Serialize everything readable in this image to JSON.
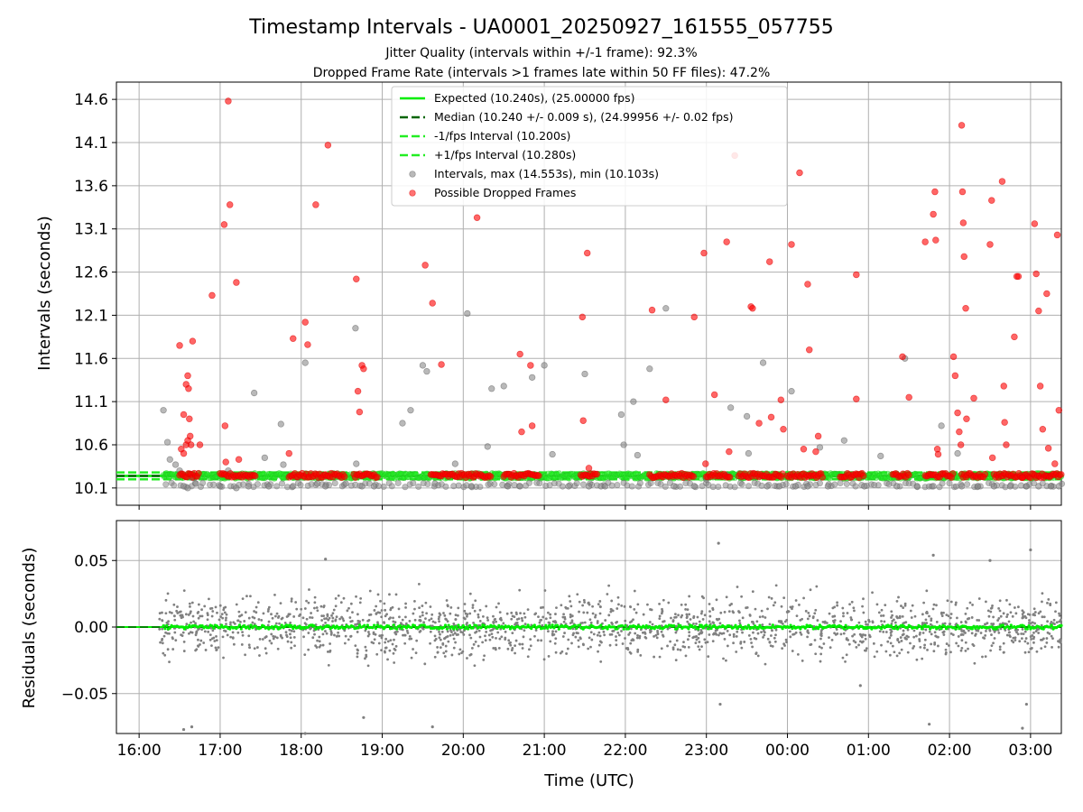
{
  "title": "Timestamp Intervals - UA0001_20250927_161555_057755",
  "subtitle_1": "Jitter Quality (intervals within +/-1 frame): 92.3%",
  "subtitle_2": "Dropped Frame Rate (intervals >1 frames late within 50 FF files): 47.2%",
  "colors": {
    "expected": "#00ee00",
    "median": "#006400",
    "fps_band": "#22ee22",
    "intervals": "#808080",
    "dropped": "#ff0000",
    "grid": "#b0b0b0"
  },
  "chart_data": [
    {
      "type": "scatter",
      "ylabel": "Intervals (seconds)",
      "xlabel": "",
      "x_range_hours": [
        15.72,
        27.38
      ],
      "ylim": [
        9.9,
        14.8
      ],
      "yticks": [
        10.1,
        10.6,
        11.1,
        11.6,
        12.1,
        12.6,
        13.1,
        13.6,
        14.1,
        14.6
      ],
      "grid": true,
      "legend_position": "top-center",
      "reference_lines": [
        {
          "name": "Expected (10.240s), (25.00000 fps)",
          "y": 10.24,
          "style": "solid",
          "color": "#00ee00"
        },
        {
          "name": "Median (10.240 +/- 0.009 s), (24.99956 +/- 0.02 fps)",
          "y": 10.24,
          "style": "dashed",
          "color": "#006400"
        },
        {
          "name": "-1/fps Interval (10.200s)",
          "y": 10.2,
          "style": "dashed",
          "color": "#22ee22"
        },
        {
          "name": "+1/fps Interval (10.280s)",
          "y": 10.28,
          "style": "dashed",
          "color": "#22ee22"
        }
      ],
      "series": [
        {
          "name": "Intervals, max (14.553s), min (10.103s)",
          "marker": "circle",
          "color": "#808080",
          "points": [
            [
              16.3,
              11.0
            ],
            [
              16.35,
              10.63
            ],
            [
              16.38,
              10.43
            ],
            [
              16.45,
              10.37
            ],
            [
              16.5,
              10.3
            ],
            [
              16.55,
              10.12
            ],
            [
              16.6,
              10.1
            ],
            [
              16.65,
              10.22
            ],
            [
              16.7,
              10.15
            ],
            [
              17.0,
              10.12
            ],
            [
              17.1,
              10.3
            ],
            [
              17.2,
              10.1
            ],
            [
              17.35,
              10.12
            ],
            [
              17.42,
              11.2
            ],
            [
              17.55,
              10.45
            ],
            [
              17.6,
              10.12
            ],
            [
              17.75,
              10.84
            ],
            [
              17.78,
              10.37
            ],
            [
              17.9,
              10.12
            ],
            [
              18.05,
              11.55
            ],
            [
              18.2,
              10.15
            ],
            [
              18.3,
              10.12
            ],
            [
              18.55,
              10.15
            ],
            [
              18.67,
              11.95
            ],
            [
              18.68,
              10.38
            ],
            [
              18.75,
              10.12
            ],
            [
              18.9,
              10.12
            ],
            [
              19.25,
              10.85
            ],
            [
              19.35,
              11.0
            ],
            [
              19.5,
              11.52
            ],
            [
              19.55,
              11.45
            ],
            [
              19.65,
              10.15
            ],
            [
              19.9,
              10.38
            ],
            [
              20.05,
              12.12
            ],
            [
              20.1,
              10.12
            ],
            [
              20.3,
              10.58
            ],
            [
              20.35,
              11.25
            ],
            [
              20.5,
              11.28
            ],
            [
              20.55,
              10.12
            ],
            [
              20.7,
              10.12
            ],
            [
              20.85,
              11.38
            ],
            [
              21.0,
              11.52
            ],
            [
              21.1,
              10.49
            ],
            [
              21.3,
              10.12
            ],
            [
              21.5,
              11.42
            ],
            [
              21.55,
              10.12
            ],
            [
              21.7,
              10.12
            ],
            [
              21.75,
              10.12
            ],
            [
              21.95,
              10.95
            ],
            [
              21.98,
              10.6
            ],
            [
              22.1,
              11.1
            ],
            [
              22.15,
              10.48
            ],
            [
              22.3,
              11.48
            ],
            [
              22.5,
              12.18
            ],
            [
              22.6,
              10.12
            ],
            [
              22.85,
              10.12
            ],
            [
              23.0,
              10.2
            ],
            [
              23.25,
              10.25
            ],
            [
              23.3,
              11.03
            ],
            [
              23.5,
              10.93
            ],
            [
              23.52,
              10.5
            ],
            [
              23.7,
              11.55
            ],
            [
              23.75,
              10.12
            ],
            [
              23.9,
              10.12
            ],
            [
              24.05,
              11.22
            ],
            [
              24.1,
              10.12
            ],
            [
              24.25,
              10.12
            ],
            [
              24.4,
              10.57
            ],
            [
              24.5,
              10.12
            ],
            [
              24.7,
              10.65
            ],
            [
              24.95,
              10.12
            ],
            [
              25.15,
              10.47
            ],
            [
              25.35,
              10.12
            ],
            [
              25.45,
              11.6
            ],
            [
              25.6,
              10.12
            ],
            [
              25.8,
              10.12
            ],
            [
              25.9,
              10.82
            ],
            [
              26.1,
              10.5
            ],
            [
              26.15,
              10.12
            ],
            [
              26.35,
              10.12
            ],
            [
              26.55,
              10.12
            ],
            [
              26.75,
              10.12
            ],
            [
              26.95,
              10.12
            ],
            [
              27.1,
              10.12
            ],
            [
              27.25,
              10.12
            ],
            [
              27.35,
              10.12
            ]
          ]
        },
        {
          "name": "Possible Dropped Frames",
          "marker": "circle",
          "color": "#ff0000",
          "points": [
            [
              16.5,
              11.75
            ],
            [
              16.55,
              10.95
            ],
            [
              16.58,
              11.3
            ],
            [
              16.6,
              11.4
            ],
            [
              16.61,
              11.25
            ],
            [
              16.62,
              10.9
            ],
            [
              16.63,
              10.7
            ],
            [
              16.64,
              10.6
            ],
            [
              16.66,
              11.8
            ],
            [
              16.52,
              10.55
            ],
            [
              16.55,
              10.5
            ],
            [
              16.58,
              10.6
            ],
            [
              16.6,
              10.65
            ],
            [
              16.75,
              10.6
            ],
            [
              16.9,
              12.33
            ],
            [
              17.05,
              13.15
            ],
            [
              17.06,
              10.82
            ],
            [
              17.07,
              10.4
            ],
            [
              17.1,
              14.58
            ],
            [
              17.12,
              13.38
            ],
            [
              17.2,
              12.48
            ],
            [
              17.23,
              10.43
            ],
            [
              17.85,
              10.5
            ],
            [
              17.9,
              11.83
            ],
            [
              18.05,
              12.02
            ],
            [
              18.08,
              11.76
            ],
            [
              18.18,
              13.38
            ],
            [
              18.33,
              14.07
            ],
            [
              18.68,
              12.52
            ],
            [
              18.7,
              11.22
            ],
            [
              18.72,
              10.98
            ],
            [
              18.75,
              11.52
            ],
            [
              18.77,
              11.48
            ],
            [
              19.53,
              12.68
            ],
            [
              19.62,
              12.24
            ],
            [
              19.73,
              11.53
            ],
            [
              20.17,
              13.23
            ],
            [
              20.7,
              11.65
            ],
            [
              20.72,
              10.75
            ],
            [
              20.83,
              11.52
            ],
            [
              20.85,
              10.82
            ],
            [
              21.47,
              12.08
            ],
            [
              21.48,
              10.88
            ],
            [
              21.53,
              12.82
            ],
            [
              21.55,
              10.33
            ],
            [
              22.33,
              12.16
            ],
            [
              22.5,
              11.12
            ],
            [
              22.85,
              12.08
            ],
            [
              22.97,
              12.82
            ],
            [
              22.99,
              10.38
            ],
            [
              23.1,
              11.18
            ],
            [
              23.25,
              12.95
            ],
            [
              23.28,
              10.52
            ],
            [
              23.35,
              13.95
            ],
            [
              23.55,
              12.2
            ],
            [
              23.57,
              12.18
            ],
            [
              23.65,
              10.85
            ],
            [
              23.78,
              12.72
            ],
            [
              23.8,
              10.92
            ],
            [
              23.92,
              11.12
            ],
            [
              23.95,
              10.78
            ],
            [
              24.05,
              12.92
            ],
            [
              24.15,
              13.75
            ],
            [
              24.2,
              10.55
            ],
            [
              24.25,
              12.46
            ],
            [
              24.27,
              11.7
            ],
            [
              24.35,
              10.52
            ],
            [
              24.38,
              10.7
            ],
            [
              24.85,
              11.13
            ],
            [
              24.85,
              12.57
            ],
            [
              25.42,
              11.62
            ],
            [
              25.5,
              11.15
            ],
            [
              25.7,
              12.95
            ],
            [
              25.8,
              13.27
            ],
            [
              25.82,
              13.53
            ],
            [
              25.83,
              12.97
            ],
            [
              25.85,
              10.55
            ],
            [
              25.86,
              10.49
            ],
            [
              26.05,
              11.62
            ],
            [
              26.07,
              11.4
            ],
            [
              26.1,
              10.97
            ],
            [
              26.12,
              10.75
            ],
            [
              26.14,
              10.6
            ],
            [
              26.15,
              14.3
            ],
            [
              26.16,
              13.53
            ],
            [
              26.17,
              13.17
            ],
            [
              26.18,
              12.78
            ],
            [
              26.2,
              12.18
            ],
            [
              26.21,
              10.9
            ],
            [
              26.3,
              11.14
            ],
            [
              26.5,
              12.92
            ],
            [
              26.52,
              13.43
            ],
            [
              26.53,
              10.45
            ],
            [
              26.65,
              13.65
            ],
            [
              26.67,
              11.28
            ],
            [
              26.68,
              10.86
            ],
            [
              26.7,
              10.6
            ],
            [
              26.8,
              11.85
            ],
            [
              26.83,
              12.55
            ],
            [
              26.85,
              12.55
            ],
            [
              26.9,
              10.22
            ],
            [
              27.05,
              13.16
            ],
            [
              27.07,
              12.58
            ],
            [
              27.1,
              12.15
            ],
            [
              27.12,
              11.28
            ],
            [
              27.15,
              10.78
            ],
            [
              27.2,
              12.35
            ],
            [
              27.22,
              10.56
            ],
            [
              27.3,
              10.38
            ],
            [
              27.33,
              13.03
            ],
            [
              27.35,
              11.0
            ]
          ]
        }
      ]
    },
    {
      "type": "scatter",
      "ylabel": "Residuals (seconds)",
      "xlabel": "Time (UTC)",
      "x_range_hours": [
        15.72,
        27.38
      ],
      "ylim": [
        -0.08,
        0.08
      ],
      "yticks": [
        -0.05,
        0.0,
        0.05
      ],
      "ytick_labels": [
        "−0.05",
        "0.00",
        "0.05"
      ],
      "xticks_hours": [
        16,
        17,
        18,
        19,
        20,
        21,
        22,
        23,
        24,
        25,
        26,
        27
      ],
      "xtick_labels": [
        "16:00",
        "17:00",
        "18:00",
        "19:00",
        "20:00",
        "21:00",
        "22:00",
        "23:00",
        "00:00",
        "01:00",
        "02:00",
        "03:00"
      ],
      "grid": true,
      "reference_lines": [
        {
          "y": 0.0,
          "style": "solid",
          "color": "#00ee00"
        }
      ],
      "series": [
        {
          "name": "",
          "marker": "dot",
          "color": "#808080",
          "x_span_hours": [
            16.25,
            27.38
          ],
          "count": 1800,
          "spread_seconds": 0.02,
          "points": [
            [
              16.55,
              -0.077
            ],
            [
              16.65,
              -0.075
            ],
            [
              18.05,
              -0.08
            ],
            [
              18.77,
              -0.068
            ],
            [
              19.62,
              -0.075
            ],
            [
              23.15,
              0.063
            ],
            [
              23.17,
              -0.058
            ],
            [
              25.8,
              0.054
            ],
            [
              25.75,
              -0.073
            ],
            [
              27.0,
              0.058
            ],
            [
              26.5,
              0.05
            ],
            [
              26.9,
              -0.076
            ],
            [
              26.95,
              -0.058
            ],
            [
              18.3,
              0.051
            ],
            [
              24.9,
              -0.044
            ]
          ]
        }
      ]
    }
  ]
}
